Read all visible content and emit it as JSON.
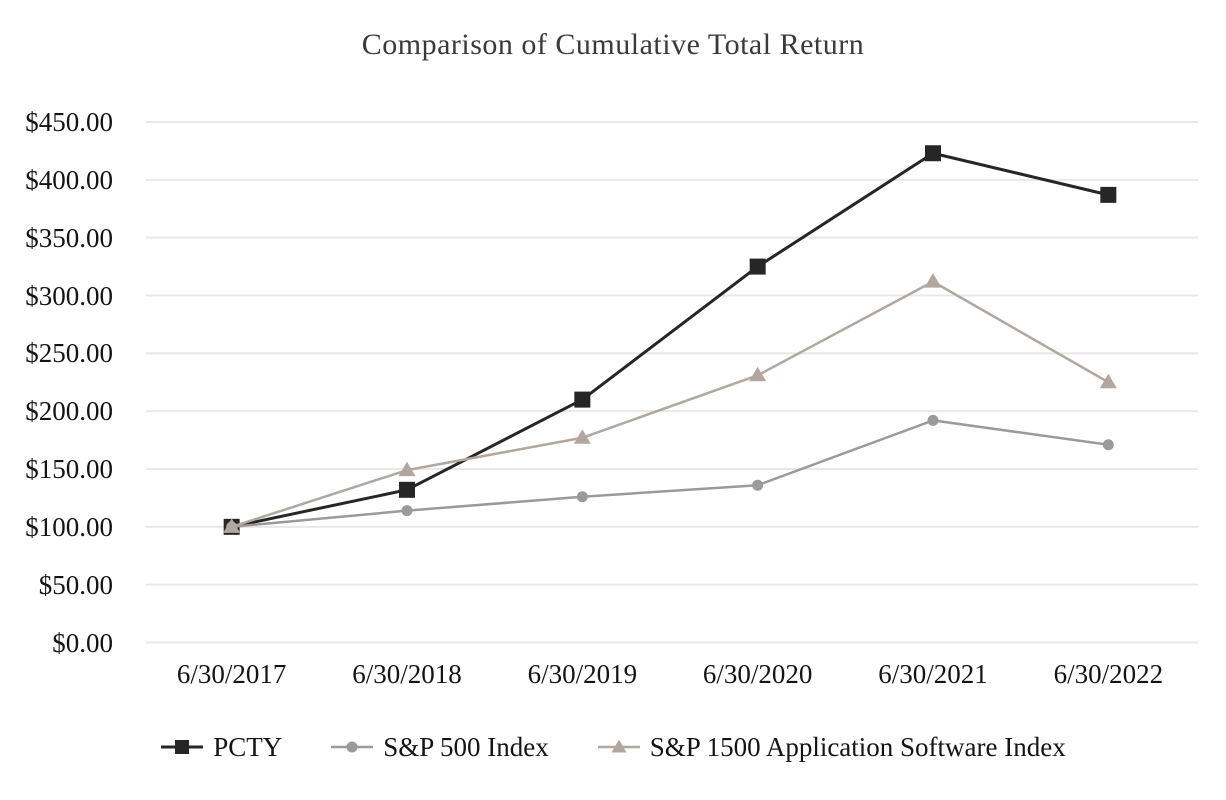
{
  "chart_data": {
    "type": "line",
    "title": "Comparison of Cumulative Total Return",
    "categories": [
      "6/30/2017",
      "6/30/2018",
      "6/30/2019",
      "6/30/2020",
      "6/30/2021",
      "6/30/2022"
    ],
    "series": [
      {
        "name": "PCTY",
        "marker": "square",
        "color": "#262626",
        "values": [
          100,
          132,
          210,
          325,
          423,
          387
        ]
      },
      {
        "name": "S&P 500 Index",
        "marker": "circle",
        "color": "#9a9a9a",
        "values": [
          100,
          114,
          126,
          136,
          192,
          171
        ]
      },
      {
        "name": "S&P 1500 Application Software Index",
        "marker": "triangle",
        "color": "#b2a79e",
        "values": [
          100,
          149,
          177,
          231,
          312,
          225
        ]
      }
    ],
    "xlabel": "",
    "ylabel": "",
    "ylim": [
      0,
      450
    ],
    "y_tick_step": 50,
    "y_tick_labels": [
      "$0.00",
      "$50.00",
      "$100.00",
      "$150.00",
      "$200.00",
      "$250.00",
      "$300.00",
      "$350.00",
      "$400.00",
      "$450.00"
    ],
    "grid": true,
    "legend_position": "bottom",
    "colors": {
      "gridline": "#e8e8e8",
      "title_text": "#3a3a3a",
      "axis_text": "#141414",
      "background": "#ffffff"
    }
  }
}
